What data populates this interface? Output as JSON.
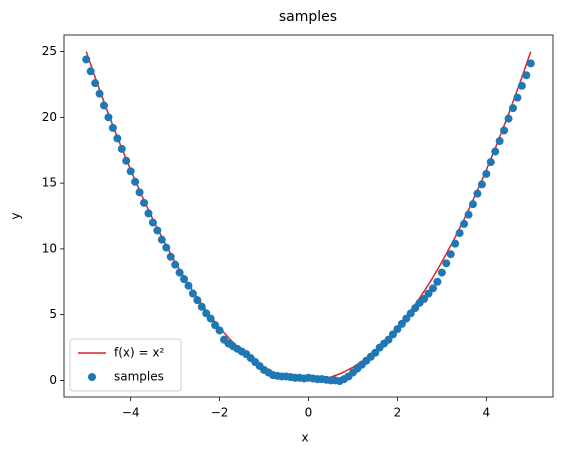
{
  "chart_data": {
    "type": "scatter",
    "title": "samples",
    "x_label": "x",
    "y_label": "y",
    "xlim": [
      -5.5,
      5.5
    ],
    "ylim": [
      -1.26,
      26.26
    ],
    "xticks": [
      {
        "value": -4,
        "label": "−4"
      },
      {
        "value": -2,
        "label": "−2"
      },
      0,
      2,
      4
    ],
    "yticks": [
      0,
      5,
      10,
      15,
      20,
      25
    ],
    "legend": "lower left",
    "series": [
      {
        "name": "f(x) = x²",
        "type": "line",
        "color": "#d62728",
        "x": [
          -5,
          -4.75,
          -4.5,
          -4.25,
          -4,
          -3.75,
          -3.5,
          -3.25,
          -3,
          -2.75,
          -2.5,
          -2.25,
          -2,
          -1.75,
          -1.5,
          -1.25,
          -1,
          -0.75,
          -0.5,
          -0.25,
          0,
          0.25,
          0.5,
          0.75,
          1,
          1.25,
          1.5,
          1.75,
          2,
          2.25,
          2.5,
          2.75,
          3,
          3.25,
          3.5,
          3.75,
          4,
          4.25,
          4.5,
          4.75,
          5
        ],
        "values": [
          25,
          22.5625,
          20.25,
          18.0625,
          16,
          14.0625,
          12.25,
          10.5625,
          9,
          7.5625,
          6.25,
          5.0625,
          4,
          3.0625,
          2.25,
          1.5625,
          1,
          0.5625,
          0.25,
          0.0625,
          0,
          0.0625,
          0.25,
          0.5625,
          1,
          1.5625,
          2.25,
          3.0625,
          4,
          5.0625,
          6.25,
          7.5625,
          9,
          10.5625,
          12.25,
          14.0625,
          16,
          18.0625,
          20.25,
          22.5625,
          25
        ]
      },
      {
        "name": "samples",
        "type": "scatter",
        "color": "#1f77b4",
        "x": [
          -5,
          -4.9,
          -4.8,
          -4.7,
          -4.6,
          -4.5,
          -4.4,
          -4.3,
          -4.2,
          -4.1,
          -4,
          -3.9,
          -3.8,
          -3.7,
          -3.6,
          -3.5,
          -3.4,
          -3.3,
          -3.2,
          -3.1,
          -3,
          -2.9,
          -2.8,
          -2.7,
          -2.6,
          -2.5,
          -2.4,
          -2.3,
          -2.2,
          -2.1,
          -2,
          -1.9,
          -1.8,
          -1.7,
          -1.6,
          -1.5,
          -1.4,
          -1.3,
          -1.2,
          -1.1,
          -1,
          -0.9,
          -0.8,
          -0.7,
          -0.6,
          -0.5,
          -0.4,
          -0.3,
          -0.2,
          -0.1,
          0,
          0.1,
          0.2,
          0.3,
          0.4,
          0.5,
          0.6,
          0.7,
          0.8,
          0.9,
          1,
          1.1,
          1.2,
          1.3,
          1.4,
          1.5,
          1.6,
          1.7,
          1.8,
          1.9,
          2,
          2.1,
          2.2,
          2.3,
          2.4,
          2.5,
          2.6,
          2.7,
          2.8,
          2.9,
          3,
          3.1,
          3.2,
          3.3,
          3.4,
          3.5,
          3.6,
          3.7,
          3.8,
          3.9,
          4,
          4.1,
          4.2,
          4.3,
          4.4,
          4.5,
          4.6,
          4.7,
          4.8,
          4.9,
          5
        ],
        "values": [
          24.4,
          23.5,
          22.6,
          21.8,
          20.9,
          20.0,
          19.2,
          18.4,
          17.6,
          16.7,
          15.9,
          15.1,
          14.3,
          13.5,
          12.7,
          12.0,
          11.4,
          10.7,
          10.1,
          9.4,
          8.8,
          8.2,
          7.7,
          7.2,
          6.6,
          6.1,
          5.6,
          5.1,
          4.7,
          4.2,
          3.8,
          3.1,
          2.8,
          2.6,
          2.4,
          2.2,
          2.0,
          1.7,
          1.4,
          1.1,
          0.8,
          0.6,
          0.4,
          0.35,
          0.3,
          0.3,
          0.25,
          0.2,
          0.2,
          0.15,
          0.2,
          0.15,
          0.1,
          0.1,
          0.05,
          0.0,
          0.0,
          -0.05,
          0.1,
          0.3,
          0.6,
          0.9,
          1.2,
          1.5,
          1.8,
          2.1,
          2.5,
          2.8,
          3.1,
          3.5,
          3.9,
          4.3,
          4.7,
          5.1,
          5.5,
          5.9,
          6.2,
          6.6,
          7.0,
          7.5,
          8.2,
          8.9,
          9.6,
          10.4,
          11.2,
          11.9,
          12.6,
          13.4,
          14.2,
          14.9,
          15.7,
          16.6,
          17.4,
          18.2,
          19.0,
          19.9,
          20.7,
          21.5,
          22.4,
          23.2,
          24.1
        ]
      }
    ]
  }
}
